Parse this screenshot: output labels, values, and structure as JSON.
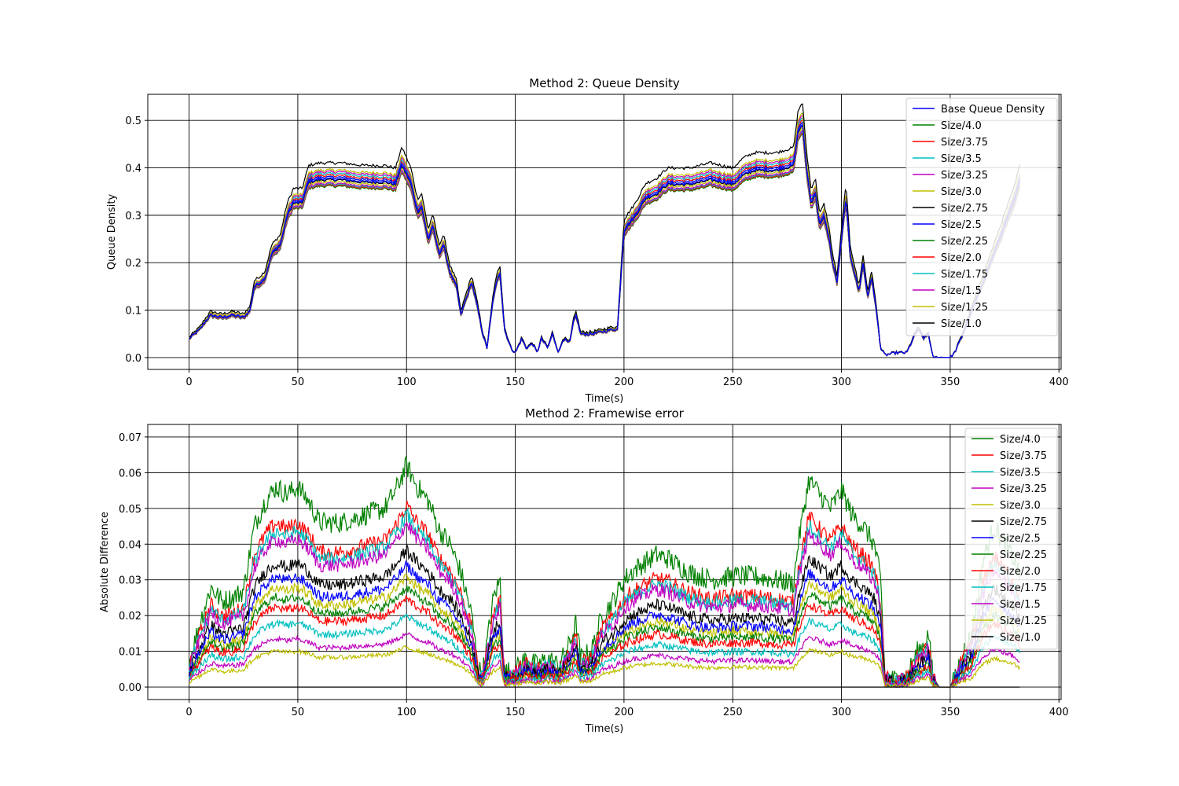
{
  "chart_data": [
    {
      "type": "line",
      "title": "Method 2: Queue Density",
      "xlabel": "Time(s)",
      "ylabel": "Queue Density",
      "xlim": [
        -19,
        401
      ],
      "ylim": [
        -0.025,
        0.555
      ],
      "xticks": [
        0,
        50,
        100,
        150,
        200,
        250,
        300,
        350,
        400
      ],
      "xtick_labels": [
        "0",
        "50",
        "100",
        "150",
        "200",
        "250",
        "300",
        "350",
        "400"
      ],
      "yticks": [
        0.0,
        0.1,
        0.2,
        0.3,
        0.4,
        0.5
      ],
      "ytick_labels": [
        "0.0",
        "0.1",
        "0.2",
        "0.3",
        "0.4",
        "0.5"
      ],
      "grid": true,
      "legend_position": "upper right",
      "base_series": {
        "name": "Base Queue Density",
        "color": "#0000ff",
        "x": [
          0,
          5,
          8,
          10,
          15,
          20,
          25,
          28,
          30,
          33,
          35,
          38,
          42,
          45,
          48,
          52,
          55,
          60,
          70,
          80,
          90,
          95,
          97,
          98,
          100,
          102,
          105,
          107,
          110,
          112,
          115,
          117,
          120,
          123,
          125,
          127,
          130,
          132,
          135,
          137,
          140,
          142,
          143,
          145,
          148,
          150,
          153,
          155,
          158,
          160,
          162,
          165,
          167,
          170,
          172,
          175,
          177,
          178,
          180,
          185,
          190,
          195,
          197,
          200,
          205,
          210,
          215,
          220,
          230,
          240,
          250,
          255,
          260,
          270,
          278,
          280,
          282,
          284,
          286,
          288,
          290,
          292,
          294,
          296,
          298,
          300,
          302,
          304,
          306,
          308,
          310,
          312,
          314,
          316,
          318,
          320,
          325,
          330,
          335,
          338,
          340,
          342,
          345,
          350,
          352,
          355,
          360,
          365,
          370,
          375,
          380,
          382
        ],
        "y": [
          0.04,
          0.06,
          0.08,
          0.09,
          0.085,
          0.09,
          0.085,
          0.1,
          0.15,
          0.16,
          0.17,
          0.22,
          0.24,
          0.3,
          0.33,
          0.33,
          0.375,
          0.38,
          0.38,
          0.375,
          0.375,
          0.37,
          0.4,
          0.41,
          0.39,
          0.37,
          0.31,
          0.32,
          0.25,
          0.28,
          0.22,
          0.24,
          0.18,
          0.15,
          0.09,
          0.12,
          0.16,
          0.12,
          0.05,
          0.02,
          0.13,
          0.17,
          0.18,
          0.06,
          0.02,
          0.01,
          0.04,
          0.02,
          0.03,
          0.01,
          0.04,
          0.02,
          0.05,
          0.01,
          0.04,
          0.03,
          0.08,
          0.09,
          0.05,
          0.05,
          0.055,
          0.06,
          0.06,
          0.27,
          0.3,
          0.34,
          0.35,
          0.37,
          0.37,
          0.38,
          0.37,
          0.39,
          0.4,
          0.4,
          0.41,
          0.48,
          0.5,
          0.4,
          0.33,
          0.35,
          0.28,
          0.3,
          0.26,
          0.2,
          0.16,
          0.25,
          0.34,
          0.22,
          0.18,
          0.14,
          0.2,
          0.13,
          0.17,
          0.1,
          0.02,
          0.005,
          0.01,
          0.01,
          0.06,
          0.04,
          0.05,
          0.0,
          0.0,
          0.0,
          0.01,
          0.04,
          0.1,
          0.16,
          0.22,
          0.28,
          0.34,
          0.38
        ]
      },
      "series": [
        {
          "name": "Size/4.0",
          "color": "#008000",
          "scale": 0.95
        },
        {
          "name": "Size/3.75",
          "color": "#ff0000",
          "scale": 0.955
        },
        {
          "name": "Size/3.5",
          "color": "#00bfbf",
          "scale": 0.96
        },
        {
          "name": "Size/3.25",
          "color": "#bf00bf",
          "scale": 0.965
        },
        {
          "name": "Size/3.0",
          "color": "#bfbf00",
          "scale": 0.975
        },
        {
          "name": "Size/2.75",
          "color": "#000000",
          "scale": 0.985
        },
        {
          "name": "Size/2.5",
          "color": "#0000ff",
          "scale": 0.99
        },
        {
          "name": "Size/2.25",
          "color": "#008000",
          "scale": 1.0
        },
        {
          "name": "Size/2.0",
          "color": "#ff0000",
          "scale": 1.01
        },
        {
          "name": "Size/1.75",
          "color": "#00bfbf",
          "scale": 1.02
        },
        {
          "name": "Size/1.5",
          "color": "#bf00bf",
          "scale": 1.03
        },
        {
          "name": "Size/1.25",
          "color": "#bfbf00",
          "scale": 1.04
        },
        {
          "name": "Size/1.0",
          "color": "#000000",
          "scale": 1.08
        }
      ]
    },
    {
      "type": "line",
      "title": "Method 2: Framewise error",
      "xlabel": "Time(s)",
      "ylabel": "Absolute Difference",
      "xlim": [
        -19,
        401
      ],
      "ylim": [
        -0.0035,
        0.0735
      ],
      "xticks": [
        0,
        50,
        100,
        150,
        200,
        250,
        300,
        350,
        400
      ],
      "xtick_labels": [
        "0",
        "50",
        "100",
        "150",
        "200",
        "250",
        "300",
        "350",
        "400"
      ],
      "yticks": [
        0.0,
        0.01,
        0.02,
        0.03,
        0.04,
        0.05,
        0.06,
        0.07
      ],
      "ytick_labels": [
        "0.00",
        "0.01",
        "0.02",
        "0.03",
        "0.04",
        "0.05",
        "0.06",
        "0.07"
      ],
      "grid": true,
      "legend_position": "upper right",
      "series": [
        {
          "name": "Size/4.0",
          "color": "#008000",
          "level": 1.0,
          "noise": 0.006
        },
        {
          "name": "Size/3.75",
          "color": "#ff0000",
          "level": 0.82,
          "noise": 0.0045
        },
        {
          "name": "Size/3.5",
          "color": "#00bfbf",
          "level": 0.78,
          "noise": 0.004
        },
        {
          "name": "Size/3.25",
          "color": "#bf00bf",
          "level": 0.74,
          "noise": 0.004
        },
        {
          "name": "Size/3.0",
          "color": "#bfbf00",
          "level": 0.5,
          "noise": 0.003
        },
        {
          "name": "Size/2.75",
          "color": "#000000",
          "level": 0.62,
          "noise": 0.0035
        },
        {
          "name": "Size/2.5",
          "color": "#0000ff",
          "level": 0.55,
          "noise": 0.003
        },
        {
          "name": "Size/2.25",
          "color": "#008000",
          "level": 0.45,
          "noise": 0.0025
        },
        {
          "name": "Size/2.0",
          "color": "#ff0000",
          "level": 0.4,
          "noise": 0.0025
        },
        {
          "name": "Size/1.75",
          "color": "#00bfbf",
          "level": 0.32,
          "noise": 0.002
        },
        {
          "name": "Size/1.5",
          "color": "#bf00bf",
          "level": 0.24,
          "noise": 0.0015
        },
        {
          "name": "Size/1.25",
          "color": "#bfbf00",
          "level": 0.18,
          "noise": 0.0012
        },
        {
          "name": "Size/1.0",
          "color": "#000000",
          "level": 0.0,
          "noise": 0.0
        }
      ],
      "envelope": {
        "x": [
          0,
          5,
          10,
          15,
          20,
          25,
          30,
          35,
          40,
          45,
          50,
          55,
          60,
          70,
          80,
          90,
          95,
          100,
          105,
          110,
          115,
          120,
          125,
          130,
          133,
          135,
          140,
          143,
          145,
          150,
          155,
          160,
          165,
          170,
          175,
          178,
          180,
          185,
          190,
          195,
          200,
          205,
          210,
          215,
          220,
          230,
          240,
          250,
          260,
          270,
          278,
          280,
          285,
          290,
          295,
          300,
          305,
          310,
          315,
          318,
          320,
          325,
          330,
          335,
          338,
          340,
          342,
          345,
          350,
          355,
          360,
          365,
          370,
          375,
          380,
          382
        ],
        "y": [
          0.007,
          0.018,
          0.028,
          0.024,
          0.025,
          0.027,
          0.045,
          0.052,
          0.056,
          0.054,
          0.056,
          0.052,
          0.046,
          0.046,
          0.048,
          0.05,
          0.055,
          0.062,
          0.056,
          0.052,
          0.044,
          0.04,
          0.032,
          0.02,
          0.005,
          0.004,
          0.025,
          0.03,
          0.004,
          0.005,
          0.008,
          0.006,
          0.008,
          0.006,
          0.012,
          0.018,
          0.008,
          0.01,
          0.02,
          0.024,
          0.03,
          0.033,
          0.035,
          0.037,
          0.036,
          0.032,
          0.03,
          0.031,
          0.031,
          0.03,
          0.029,
          0.04,
          0.058,
          0.054,
          0.05,
          0.055,
          0.048,
          0.045,
          0.04,
          0.03,
          0.003,
          0.002,
          0.003,
          0.01,
          0.012,
          0.015,
          0.003,
          0.0,
          0.0,
          0.008,
          0.015,
          0.035,
          0.045,
          0.04,
          0.035,
          0.03
        ]
      }
    }
  ]
}
